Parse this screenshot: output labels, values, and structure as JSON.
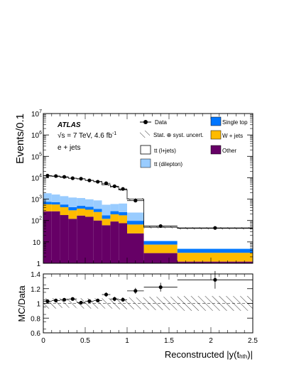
{
  "chart_data": [
    {
      "type": "bar",
      "panel": "main",
      "ylabel": "Events/0.1",
      "yscale": "log",
      "ylim": [
        1,
        10000000
      ],
      "xlim": [
        0,
        2.5
      ],
      "y_ticks": [
        {
          "value": 1,
          "mant": "1",
          "exp": ""
        },
        {
          "value": 10,
          "mant": "10",
          "exp": ""
        },
        {
          "value": 100,
          "mant": "10",
          "exp": "2"
        },
        {
          "value": 1000,
          "mant": "10",
          "exp": "3"
        },
        {
          "value": 10000,
          "mant": "10",
          "exp": "4"
        },
        {
          "value": 100000,
          "mant": "10",
          "exp": "5"
        },
        {
          "value": 1000000,
          "mant": "10",
          "exp": "6"
        },
        {
          "value": 10000000,
          "mant": "10",
          "exp": "7"
        }
      ],
      "annotations": {
        "atlas": "ATLAS",
        "energy": "√s = 7 TeV, 4.6 fb",
        "energy_sup": "-1",
        "channel": "e + jets"
      },
      "legend": {
        "placement": "top-right",
        "data": "Data",
        "unc": "Stat. ⊕ syst. uncert.",
        "ttlj": "tt (l+jets)",
        "ttdil": "tt (dilepton)",
        "single_top": "Single top",
        "wjets": "W + jets",
        "other": "Other"
      },
      "bin_edges": [
        0,
        0.1,
        0.2,
        0.3,
        0.4,
        0.5,
        0.6,
        0.7,
        0.8,
        0.9,
        1.0,
        1.2,
        1.6,
        2.5
      ],
      "stack": [
        {
          "name": "Other",
          "color": "#660066",
          "values": [
            270,
            270,
            180,
            120,
            170,
            150,
            100,
            60,
            90,
            75,
            25,
            3,
            1.2
          ]
        },
        {
          "name": "W + jets",
          "color": "#ffbb00",
          "values": [
            300,
            290,
            240,
            180,
            190,
            170,
            150,
            60,
            105,
            100,
            40,
            4.5,
            1.9
          ]
        },
        {
          "name": "Single top",
          "color": "#0076ff",
          "values": [
            170,
            165,
            140,
            120,
            125,
            120,
            100,
            55,
            78,
            72,
            32,
            3.2,
            1.5
          ]
        },
        {
          "name": "tt (dilepton)",
          "color": "#99ccff",
          "values": [
            1160,
            920,
            830,
            780,
            640,
            550,
            530,
            375,
            320,
            380,
            140,
            0.8,
            0.4
          ]
        },
        {
          "name": "tt (l+jets)",
          "color": "#ffffff",
          "values": [
            10300,
            10000,
            9100,
            8200,
            7700,
            6500,
            5800,
            4150,
            3200,
            2100,
            760,
            37,
            38
          ]
        }
      ],
      "data_points": {
        "x": [
          0.05,
          0.15,
          0.25,
          0.35,
          0.45,
          0.55,
          0.65,
          0.75,
          0.85,
          0.95,
          1.1,
          1.4,
          2.05
        ],
        "y": [
          12500,
          12000,
          11000,
          9500,
          9000,
          7500,
          6500,
          5500,
          4000,
          3000,
          850,
          55,
          45
        ]
      }
    },
    {
      "type": "scatter",
      "panel": "ratio",
      "xlabel": "Reconstructed |y(t",
      "xlabel_sub": "h",
      "xlabel_end": ")|",
      "ylabel": "MC/Data",
      "xlim": [
        0,
        2.5
      ],
      "ylim": [
        0.6,
        1.4
      ],
      "x_ticks": [
        "0",
        "0.5",
        "1",
        "1.5",
        "2",
        "2.5"
      ],
      "y_ticks": [
        "0.6",
        "0.8",
        "1",
        "1.2",
        "1.4"
      ],
      "band": {
        "low": [
          0.93,
          0.93,
          0.94,
          0.94,
          0.93,
          0.93,
          0.93,
          0.93,
          0.93,
          0.92,
          0.92,
          0.91,
          0.9
        ],
        "high": [
          1.07,
          1.07,
          1.07,
          1.07,
          1.07,
          1.07,
          1.07,
          1.07,
          1.07,
          1.08,
          1.08,
          1.09,
          1.1
        ]
      },
      "points": {
        "x": [
          0.05,
          0.15,
          0.25,
          0.35,
          0.45,
          0.55,
          0.65,
          0.75,
          0.85,
          0.95,
          1.1,
          1.4,
          2.05
        ],
        "xerr_low": [
          0.05,
          0.05,
          0.05,
          0.05,
          0.05,
          0.05,
          0.05,
          0.05,
          0.05,
          0.05,
          0.1,
          0.2,
          0.45
        ],
        "xerr_high": [
          0.05,
          0.05,
          0.05,
          0.05,
          0.05,
          0.05,
          0.05,
          0.05,
          0.05,
          0.05,
          0.1,
          0.2,
          0.45
        ],
        "y": [
          1.03,
          1.04,
          1.05,
          1.06,
          1.01,
          1.03,
          1.04,
          1.12,
          1.06,
          1.05,
          1.17,
          1.22,
          1.32
        ],
        "yerr": [
          0.02,
          0.02,
          0.02,
          0.02,
          0.02,
          0.02,
          0.02,
          0.03,
          0.03,
          0.03,
          0.04,
          0.06,
          0.12
        ]
      }
    }
  ]
}
